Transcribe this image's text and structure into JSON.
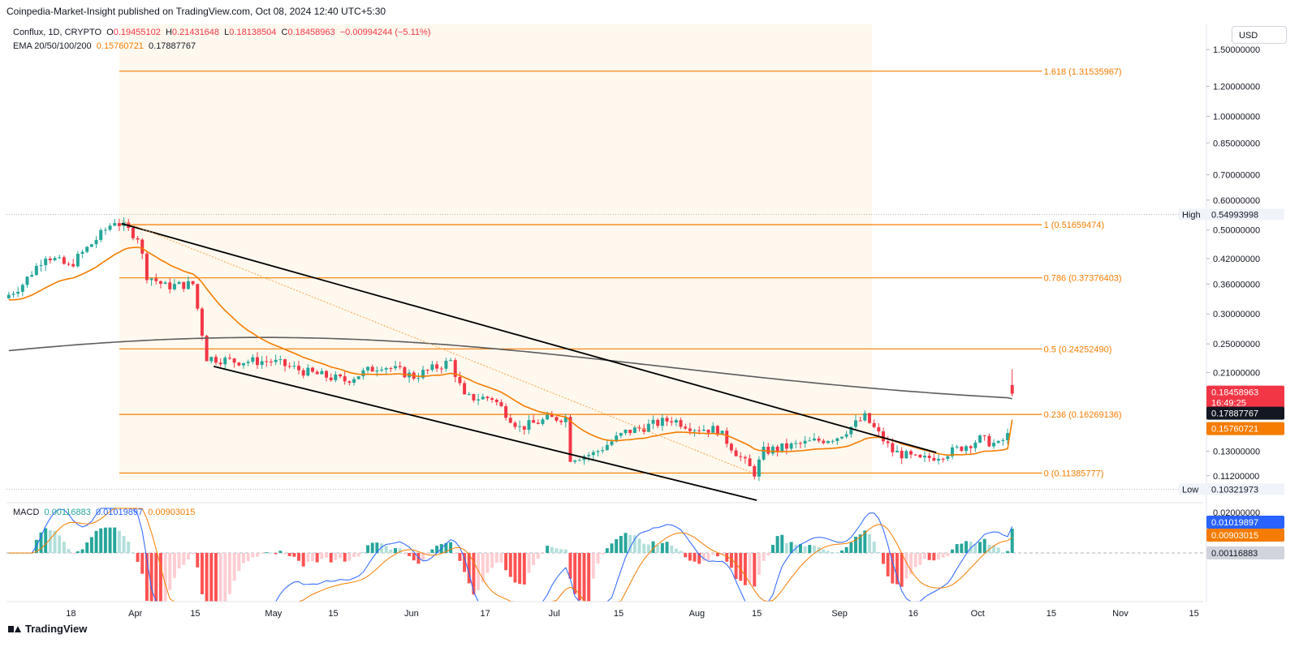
{
  "header": {
    "published": "Coinpedia-Market-Insight published on TradingView.com, Oct 08, 2024 12:40 UTC+5:30"
  },
  "legend": {
    "symbol": "Conflux, 1D, CRYPTO",
    "open_label": "O",
    "open": "0.19455102",
    "high_label": "H",
    "high": "0.21431648",
    "low_label": "L",
    "low": "0.18138504",
    "close_label": "C",
    "close": "0.18458963",
    "change": "−0.00994244 (−5.11%)",
    "ema_label": "EMA 20/50/100/200",
    "ema50": "0.15760721",
    "ema200": "0.17887767"
  },
  "macd_legend": {
    "label": "MACD",
    "histogram": "0.00116883",
    "macd": "0.01019897",
    "signal": "0.00903015"
  },
  "currency_button": "USD",
  "footer": {
    "brand": "TradingView"
  },
  "colors": {
    "up": "#26a69a",
    "down": "#f23645",
    "fib": "#f57c00",
    "ema50": "#f57c00",
    "ema200": "#5d5d5d",
    "macd": "#2962ff",
    "signal": "#f57c00",
    "fib_fill": "#fff8ee"
  },
  "chart_data": [
    {
      "type": "candlestick",
      "title": "Conflux, 1D, CRYPTO",
      "currency": "USD",
      "scale": "log",
      "x_ticks": [
        "18",
        "Apr",
        "15",
        "May",
        "15",
        "Jun",
        "17",
        "Jul",
        "15",
        "Aug",
        "15",
        "Sep",
        "16",
        "Oct",
        "15",
        "Nov",
        "15"
      ],
      "y_ticks": [
        "1.50000000",
        "1.20000000",
        "1.00000000",
        "0.85000000",
        "0.70000000",
        "0.60000000",
        "0.50000000",
        "0.42000000",
        "0.36000000",
        "0.30000000",
        "0.25000000",
        "0.21000000",
        "0.13000000",
        "0.11200000"
      ],
      "ohlc_last": {
        "open": 0.19455102,
        "high": 0.21431648,
        "low": 0.18138504,
        "close": 0.18458963
      },
      "countdown": "16:49:25",
      "high_marker": {
        "label": "High",
        "value": "0.54993998"
      },
      "low_marker": {
        "label": "Low",
        "value": "0.10321973"
      },
      "fib_levels": [
        {
          "label": "1.618 (1.31535967)",
          "value": 1.31535967
        },
        {
          "label": "1 (0.51659474)",
          "value": 0.51659474
        },
        {
          "label": "0.786 (0.37376403)",
          "value": 0.37376403
        },
        {
          "label": "0.5 (0.24252490)",
          "value": 0.2425249
        },
        {
          "label": "0.236 (0.16269136)",
          "value": 0.16269136
        },
        {
          "label": "0 (0.11385777)",
          "value": 0.11385777
        }
      ],
      "price_labels": [
        {
          "value": "0.18458963",
          "color": "#f23645"
        },
        {
          "value": "0.17887767",
          "color": "#131722"
        },
        {
          "value": "0.15760721",
          "color": "#f57c00"
        }
      ],
      "series": [
        {
          "name": "EMA 50",
          "last": 0.15760721
        },
        {
          "name": "EMA 200",
          "last": 0.17887767
        }
      ]
    },
    {
      "type": "macd",
      "title": "MACD",
      "y_ticks": [
        "0.02000000"
      ],
      "values": {
        "histogram": 0.00116883,
        "macd": 0.01019897,
        "signal": 0.00903015
      },
      "value_labels": [
        {
          "value": "0.01019897",
          "color": "#2962ff"
        },
        {
          "value": "0.00903015",
          "color": "#f57c00"
        },
        {
          "value": "0.00116883",
          "color": "#d1d4dc"
        }
      ]
    }
  ]
}
